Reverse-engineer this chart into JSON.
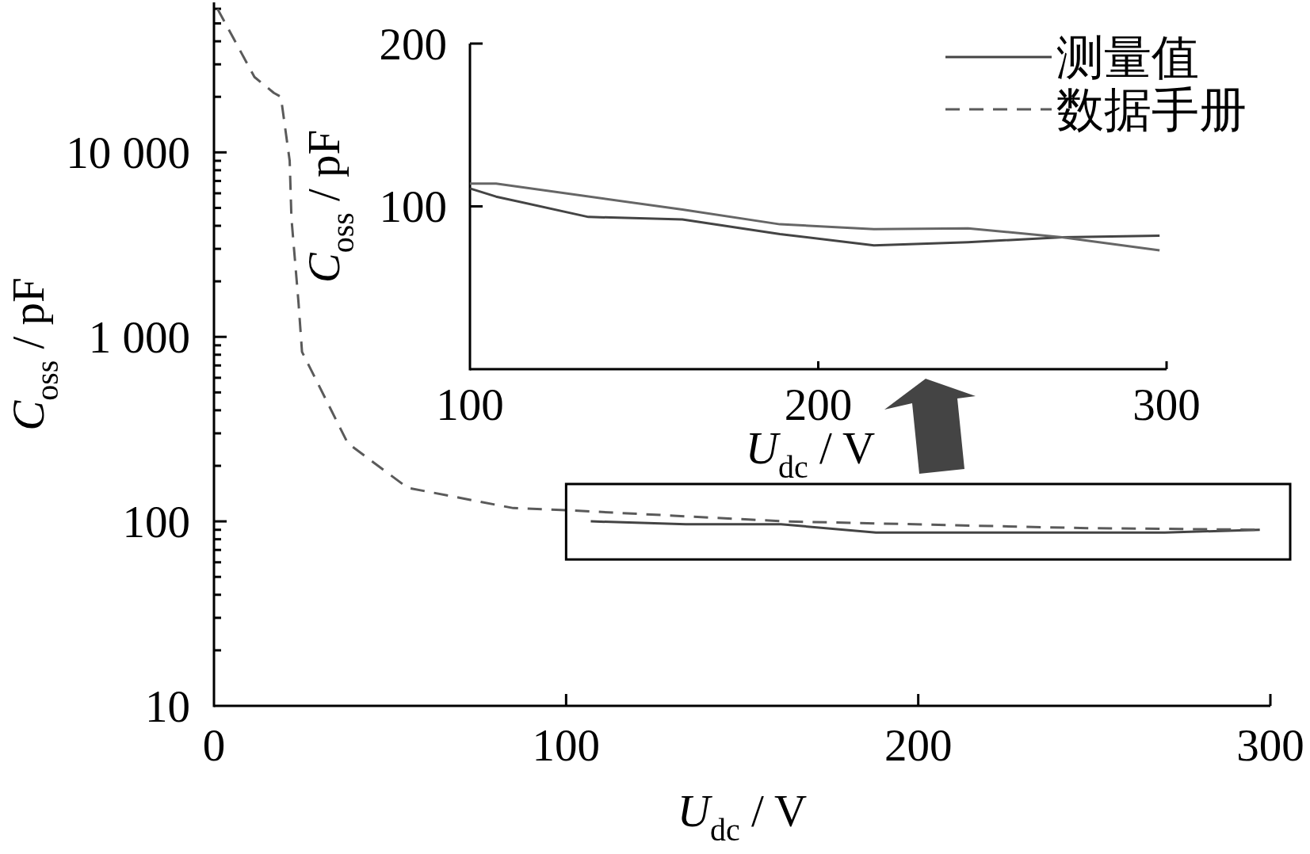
{
  "chart_data": [
    {
      "type": "line",
      "xlabel": "*U*$_{dc}$ / V",
      "ylabel": "*C*$_{oss}$ / pF",
      "log": "y",
      "legend": "top right",
      "xlim": [
        0,
        300
      ],
      "xticks": [
        0,
        100,
        200,
        300
      ],
      "ylim": [
        10,
        65000
      ],
      "yticks": [
        10,
        100,
        {
          "value": 1000,
          "label": "1 000"
        },
        {
          "value": 10000,
          "label": "10 000"
        }
      ],
      "series": [
        {
          "name": "测量值",
          "color": "#444444",
          "line_style": "solid",
          "x": [
            107,
            134,
            161,
            188,
            270,
            297
          ],
          "values": [
            100,
            96.5,
            96.5,
            87,
            87,
            90
          ]
        },
        {
          "name": "数据手册",
          "color": "#5a5a5a",
          "line_style": "dashed",
          "x": [
            1,
            11.5,
            17,
            19,
            21.5,
            22,
            24,
            25,
            38,
            55,
            85,
            100,
            162,
            246,
            298
          ],
          "values": [
            60000,
            25600,
            21000,
            20000,
            9000,
            4400,
            1540,
            830,
            265,
            152,
            118,
            115,
            100,
            92,
            90
          ]
        }
      ]
    },
    {
      "type": "line",
      "xlabel": "*U*$_{dc}$ / V",
      "ylabel": "*C*$_{oss}$ / pF",
      "xlim": [
        100,
        300
      ],
      "xticks": [
        100,
        200,
        300
      ],
      "ylim": [
        0,
        200
      ],
      "yticks": [
        100,
        200
      ],
      "series": [
        {
          "color": "#444444",
          "x": [
            100,
            107.5,
            134,
            161,
            189,
            216,
            243,
            270,
            298
          ],
          "values": [
            111,
            106,
            93.5,
            92,
            83,
            76,
            78,
            81,
            82
          ]
        },
        {
          "color": "#666666",
          "x": [
            100,
            107.5,
            161,
            189,
            216,
            243,
            270,
            298
          ],
          "values": [
            114,
            114,
            98,
            89,
            86,
            86.5,
            81,
            73
          ]
        }
      ]
    }
  ]
}
